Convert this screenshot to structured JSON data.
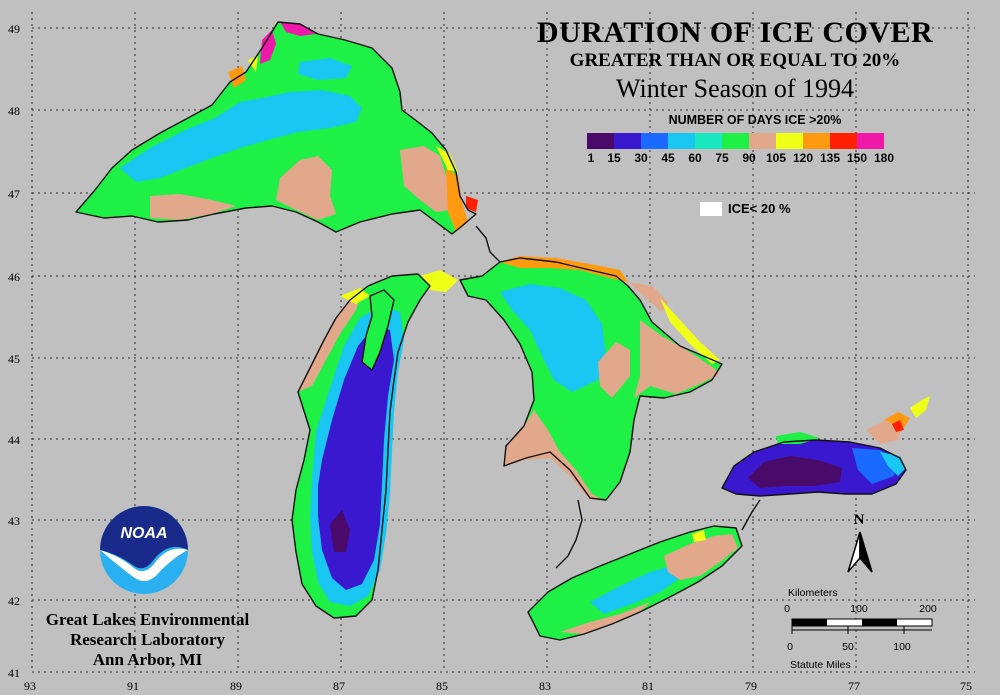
{
  "title": {
    "main": "DURATION OF ICE COVER",
    "sub": "GREATER THAN OR EQUAL TO 20%",
    "season": "Winter Season of 1994"
  },
  "legend": {
    "title": "NUMBER OF DAYS ICE >20%",
    "ticks": [
      "1",
      "15",
      "30",
      "45",
      "60",
      "75",
      "90",
      "105",
      "120",
      "135",
      "150",
      "180"
    ],
    "colors": [
      "#4a0a6a",
      "#3a18d0",
      "#1a6aff",
      "#1ac6f2",
      "#18e8c0",
      "#1ef045",
      "#e2a88c",
      "#f0ff16",
      "#ff9a10",
      "#ff2000",
      "#f018a8"
    ],
    "ice_below_label": "ICE< 20 %",
    "ice_below_color": "#ffffff"
  },
  "axes": {
    "latitude_labels": [
      "49",
      "48",
      "47",
      "46",
      "45",
      "44",
      "43",
      "42",
      "41"
    ],
    "longitude_labels": [
      "93",
      "91",
      "89",
      "87",
      "85",
      "83",
      "81",
      "79",
      "77",
      "75"
    ]
  },
  "organization": {
    "line1": "Great Lakes Environmental",
    "line2": "Research Laboratory",
    "line3": "Ann Arbor, MI",
    "logo_text": "NOAA"
  },
  "compass": {
    "label": "N"
  },
  "scale_bar": {
    "km_label": "Kilometers",
    "km_ticks": [
      "0",
      "100",
      "200"
    ],
    "mi_ticks": [
      "0",
      "50",
      "100"
    ],
    "mi_label": "Statute Miles"
  },
  "lakes": [
    {
      "name": "superior",
      "dominant_days_color": "#1ef045"
    },
    {
      "name": "michigan",
      "dominant_days_color": "#3a18d0"
    },
    {
      "name": "huron",
      "dominant_days_color": "#1ac6f2"
    },
    {
      "name": "erie",
      "dominant_days_color": "#1ef045"
    },
    {
      "name": "ontario",
      "dominant_days_color": "#3a18d0"
    }
  ]
}
